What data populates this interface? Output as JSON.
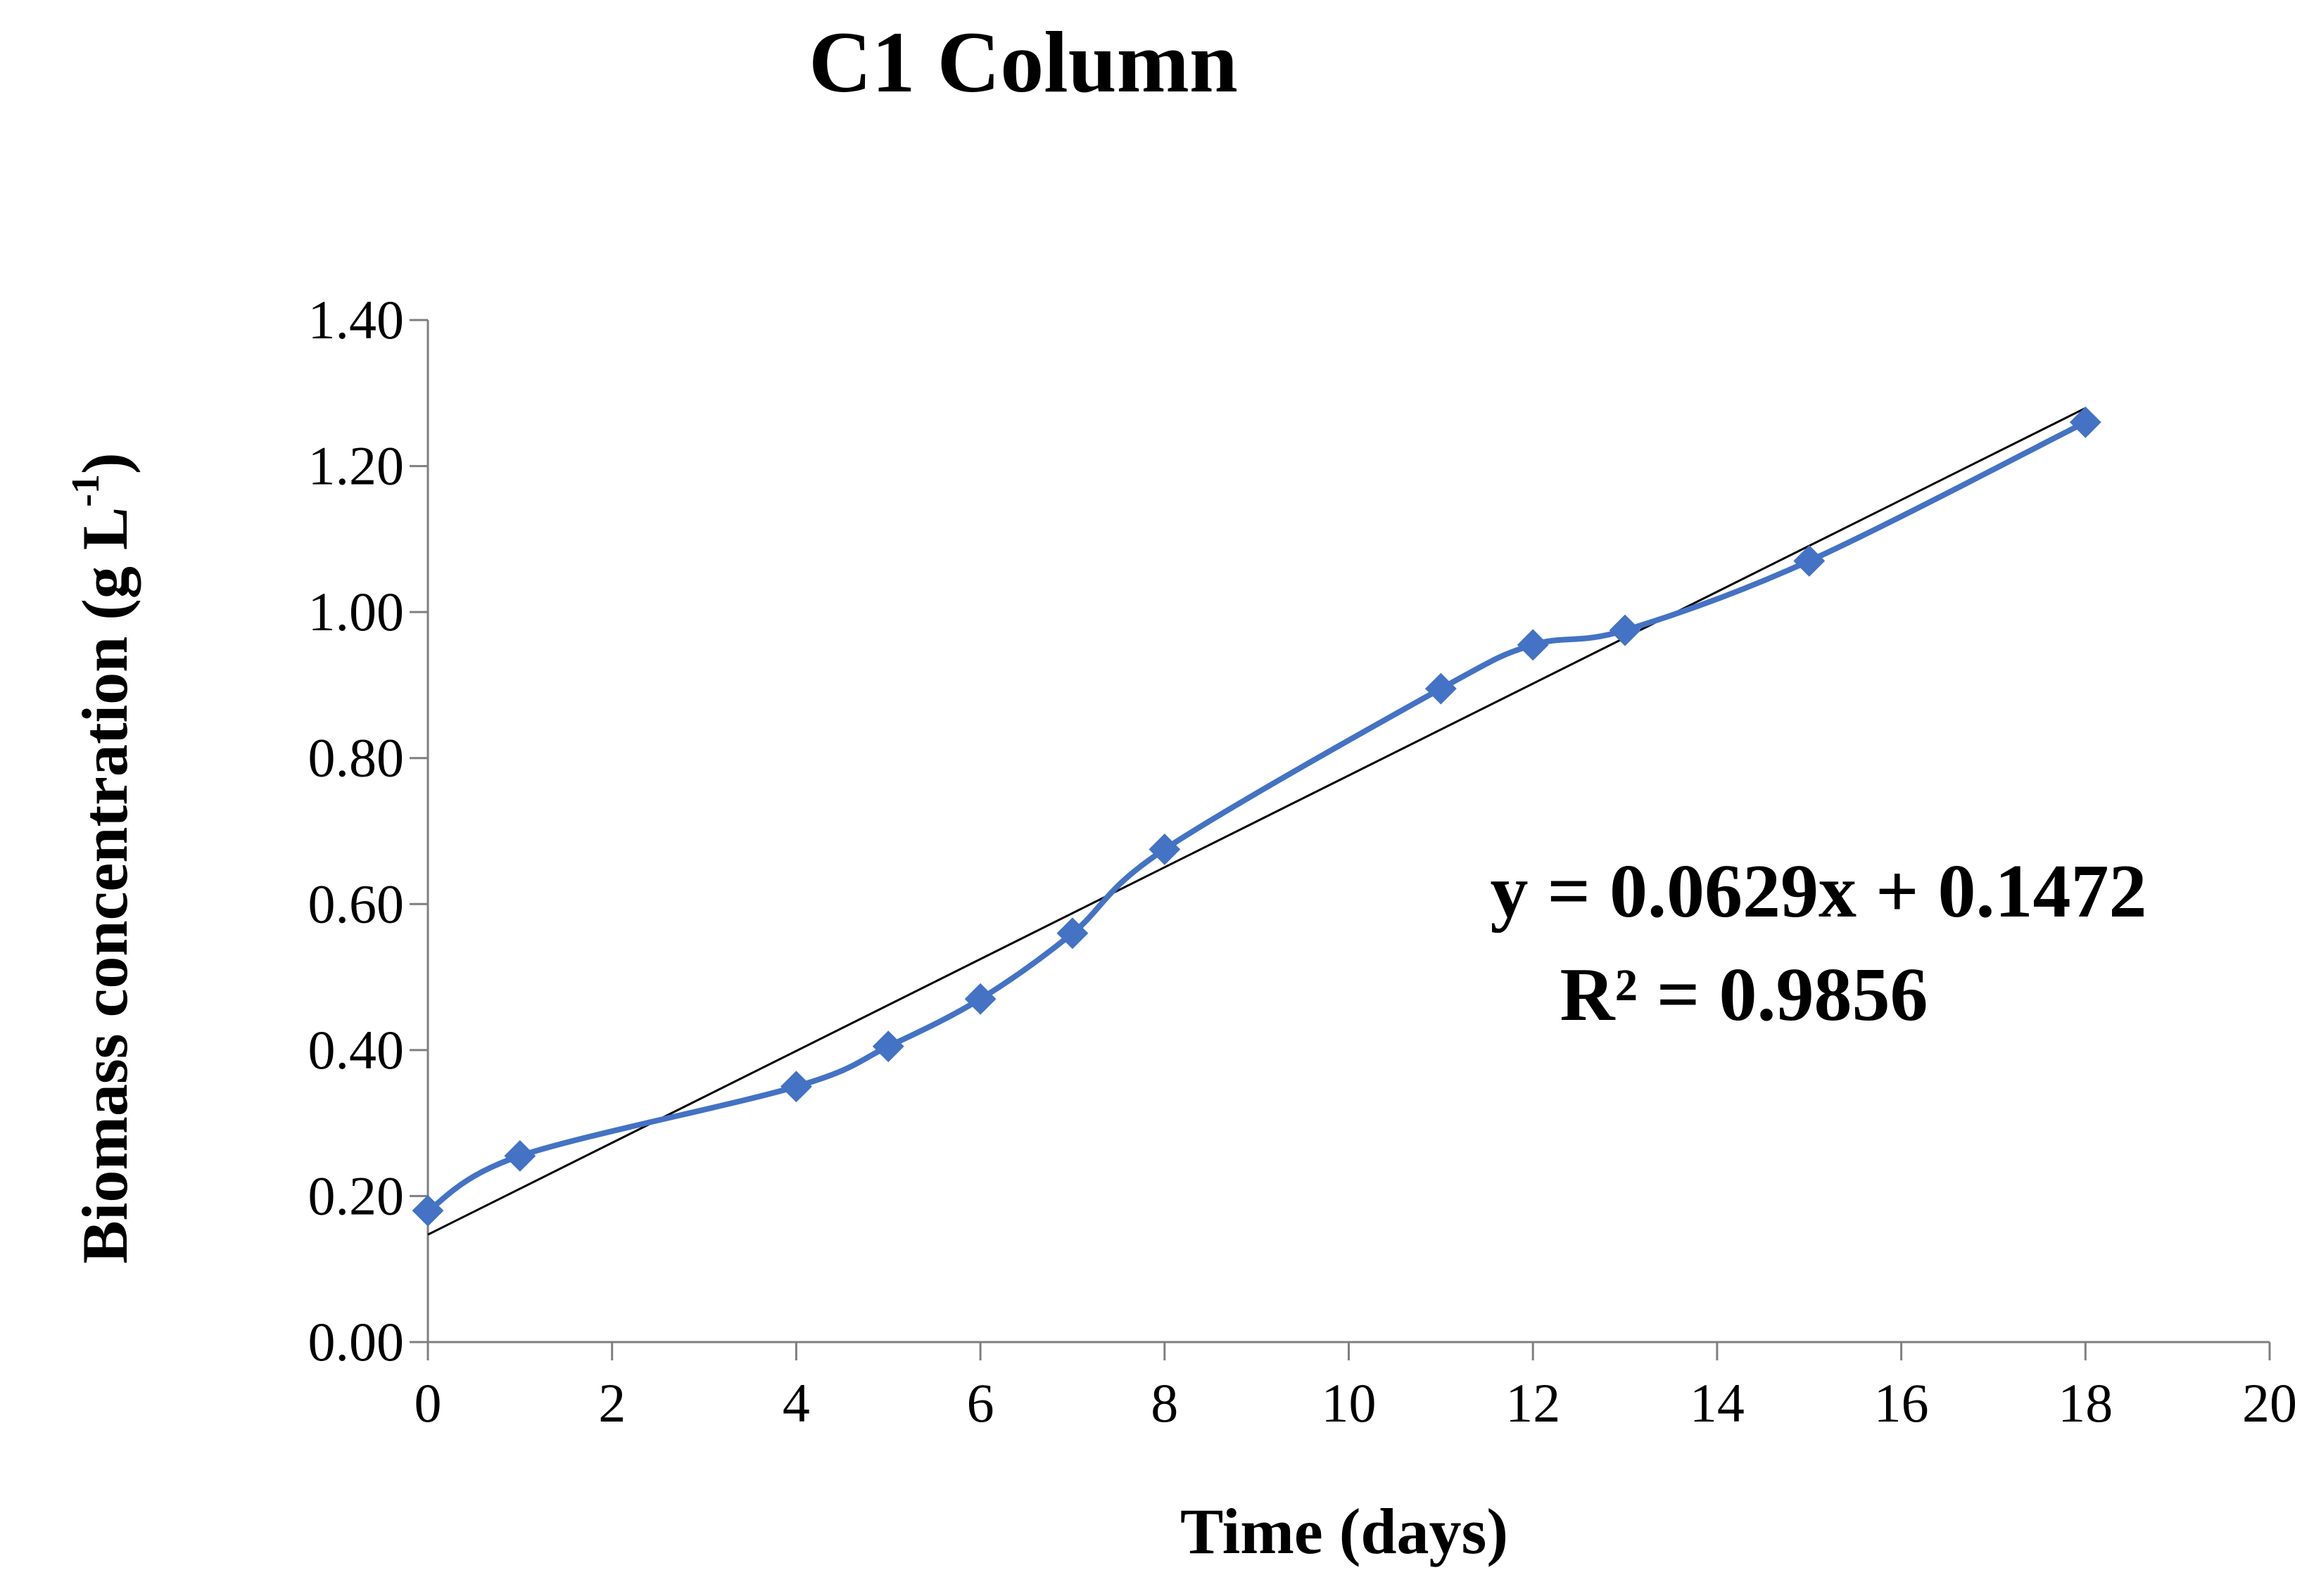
{
  "chart_data": {
    "type": "scatter",
    "title": "C1 Column",
    "xlabel": "Time (days)",
    "ylabel_main": "Biomass concentration (g L",
    "ylabel_sup": "-1",
    "ylabel_close": ")",
    "xlim": [
      0,
      20
    ],
    "ylim": [
      0,
      1.4
    ],
    "x_ticks": [
      0,
      2,
      4,
      6,
      8,
      10,
      12,
      14,
      16,
      18,
      20
    ],
    "x_tick_labels": [
      "0",
      "2",
      "4",
      "6",
      "8",
      "10",
      "12",
      "14",
      "16",
      "18",
      "20"
    ],
    "y_ticks": [
      0,
      0.2,
      0.4,
      0.6,
      0.8,
      1.0,
      1.2,
      1.4
    ],
    "y_tick_labels": [
      "0.00",
      "0.20",
      "0.40",
      "0.60",
      "0.80",
      "1.00",
      "1.20",
      "1.40"
    ],
    "grid": false,
    "series": [
      {
        "name": "Biomass",
        "x": [
          0,
          1,
          4,
          5,
          6,
          7,
          8,
          11,
          12,
          13,
          15,
          18
        ],
        "y": [
          0.18,
          0.255,
          0.35,
          0.405,
          0.47,
          0.56,
          0.675,
          0.895,
          0.955,
          0.975,
          1.07,
          1.26
        ],
        "color": "#4472C4",
        "marker": "diamond",
        "smooth": true
      }
    ],
    "trendline": {
      "slope": 0.0629,
      "intercept": 0.1472,
      "x_range": [
        0,
        18
      ],
      "color": "#000000"
    },
    "annotations": {
      "equation": "y = 0.0629x + 0.1472",
      "r_squared": "R² = 0.9856"
    }
  }
}
